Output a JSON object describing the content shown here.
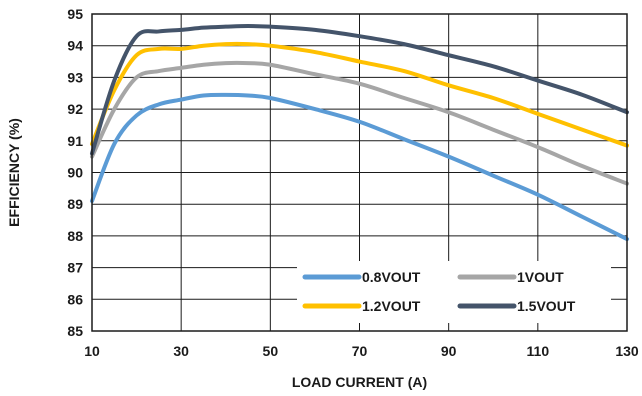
{
  "chart_data": {
    "type": "line",
    "xlabel": "LOAD CURRENT (A)",
    "ylabel": "EFFICIENCY (%)",
    "xlim": [
      10,
      130
    ],
    "ylim": [
      85,
      95
    ],
    "xticks": [
      10,
      30,
      50,
      70,
      90,
      110,
      130
    ],
    "yticks": [
      85,
      86,
      87,
      88,
      89,
      90,
      91,
      92,
      93,
      94,
      95
    ],
    "grid": true,
    "legend_position": "bottom-right",
    "series": [
      {
        "name": "0.8VOUT",
        "color": "#5b9bd5",
        "x": [
          10,
          15,
          20,
          25,
          30,
          35,
          40,
          45,
          50,
          60,
          70,
          80,
          90,
          100,
          110,
          120,
          130
        ],
        "y": [
          89.1,
          90.9,
          91.8,
          92.15,
          92.3,
          92.43,
          92.45,
          92.43,
          92.35,
          92.0,
          91.6,
          91.05,
          90.5,
          89.9,
          89.3,
          88.6,
          87.9
        ]
      },
      {
        "name": "1VOUT",
        "color": "#a6a6a6",
        "x": [
          10,
          15,
          20,
          25,
          30,
          35,
          40,
          45,
          50,
          60,
          70,
          80,
          90,
          100,
          110,
          120,
          130
        ],
        "y": [
          90.5,
          92.0,
          93.0,
          93.2,
          93.3,
          93.4,
          93.45,
          93.45,
          93.4,
          93.1,
          92.8,
          92.35,
          91.9,
          91.35,
          90.8,
          90.2,
          89.65
        ]
      },
      {
        "name": "1.2VOUT",
        "color": "#ffc000",
        "x": [
          10,
          15,
          20,
          25,
          30,
          35,
          40,
          45,
          50,
          60,
          70,
          80,
          90,
          100,
          110,
          120,
          130
        ],
        "y": [
          90.9,
          92.6,
          93.7,
          93.9,
          93.9,
          94.0,
          94.05,
          94.05,
          94.0,
          93.8,
          93.5,
          93.2,
          92.75,
          92.35,
          91.85,
          91.35,
          90.85
        ]
      },
      {
        "name": "1.5VOUT",
        "color": "#44546a",
        "x": [
          10,
          15,
          20,
          25,
          30,
          35,
          40,
          45,
          50,
          60,
          70,
          80,
          90,
          100,
          110,
          120,
          130
        ],
        "y": [
          90.6,
          92.9,
          94.3,
          94.45,
          94.5,
          94.57,
          94.6,
          94.62,
          94.6,
          94.5,
          94.3,
          94.05,
          93.7,
          93.35,
          92.9,
          92.45,
          91.9
        ]
      }
    ]
  }
}
